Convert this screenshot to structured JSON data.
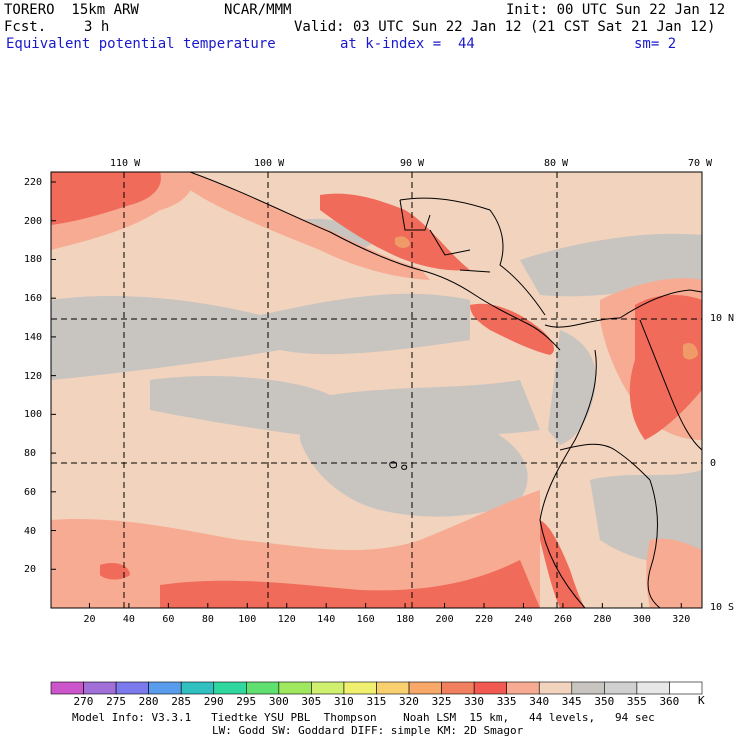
{
  "header": {
    "model": "TORERO  15km ARW",
    "org": "NCAR/MMM",
    "init": "Init: 00 UTC Sun 22 Jan 12",
    "fcst_label": "Fcst.",
    "fcst_value": "3 h",
    "valid": "Valid: 03 UTC Sun 22 Jan 12 (21 CST Sat 21 Jan 12)",
    "field": "Equivalent potential temperature",
    "level": "at k-index =  44",
    "smooth": "sm= 2"
  },
  "map": {
    "colors": {
      "frame": "#000000",
      "background_theta": "#f2d3bd",
      "low_theta": "#c8c4c0",
      "mid_theta": "#f7ab92",
      "high_theta": "#f06b5a",
      "peak_theta": "#f09a68"
    },
    "top_longitudes": [
      "110 W",
      "100 W",
      "90 W",
      "80 W",
      "70 W"
    ],
    "right_latitudes": [
      "10 N",
      "0",
      "10 S"
    ],
    "y_ticks": [
      "220",
      "200",
      "180",
      "160",
      "140",
      "120",
      "100",
      "80",
      "60",
      "40",
      "20"
    ],
    "x_ticks": [
      "20",
      "40",
      "60",
      "80",
      "100",
      "120",
      "140",
      "160",
      "180",
      "200",
      "220",
      "240",
      "260",
      "280",
      "300",
      "320"
    ]
  },
  "colorbar": {
    "labels": [
      "270",
      "275",
      "280",
      "285",
      "290",
      "295",
      "300",
      "305",
      "310",
      "315",
      "320",
      "325",
      "330",
      "335",
      "340",
      "345",
      "350",
      "355",
      "360"
    ],
    "unit": "K",
    "colors": [
      "#cc55cc",
      "#a070d8",
      "#7a7aec",
      "#5a9cec",
      "#30c0c0",
      "#30d8a0",
      "#60e070",
      "#a0e860",
      "#d0f070",
      "#f0f070",
      "#f8d070",
      "#f8a868",
      "#f08060",
      "#f05a50",
      "#f7ab92",
      "#f2d3bd",
      "#c8c4c0",
      "#d0d0d0",
      "#e8e8e8",
      "#ffffff"
    ]
  },
  "footer": {
    "line1": "Model Info: V3.3.1   Tiedtke YSU PBL  Thompson    Noah LSM  15 km,   44 levels,   94 sec",
    "line2": "LW: Godd SW: Goddard DIFF: simple KM: 2D Smagor"
  }
}
